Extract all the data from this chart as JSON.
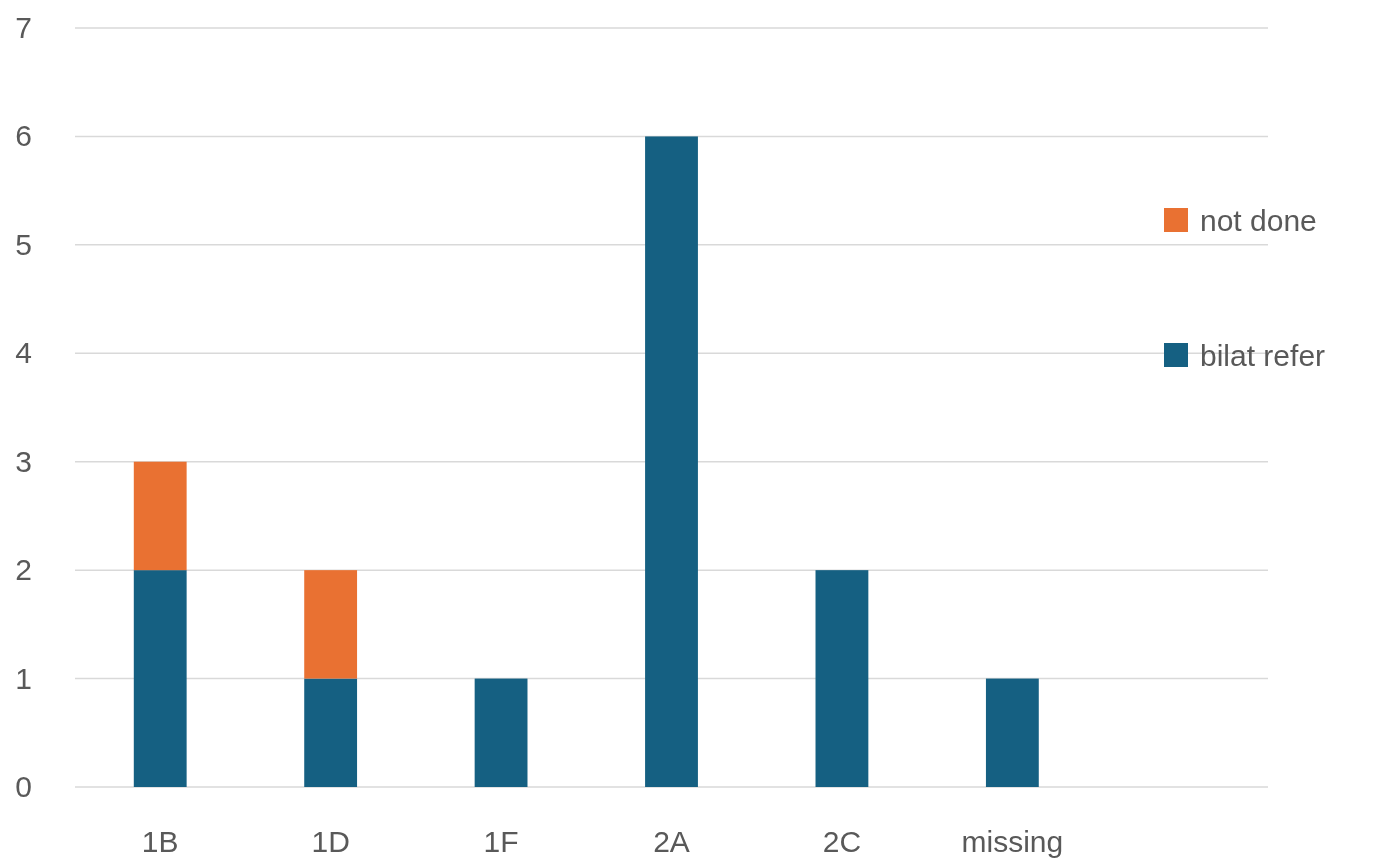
{
  "chart_data": {
    "type": "bar",
    "stacked": true,
    "categories": [
      "1B",
      "1D",
      "1F",
      "2A",
      "2C",
      "missing",
      null
    ],
    "series": [
      {
        "name": "bilat refer",
        "color": "#156082",
        "values": [
          2,
          1,
          1,
          6,
          2,
          1,
          null
        ]
      },
      {
        "name": "not done",
        "color": "#e97132",
        "values": [
          1,
          1,
          null,
          null,
          null,
          null,
          null
        ]
      }
    ],
    "ylim": [
      0,
      7
    ],
    "yticks": [
      0,
      1,
      2,
      3,
      4,
      5,
      6,
      7
    ],
    "grid": "y",
    "legend": "right"
  }
}
